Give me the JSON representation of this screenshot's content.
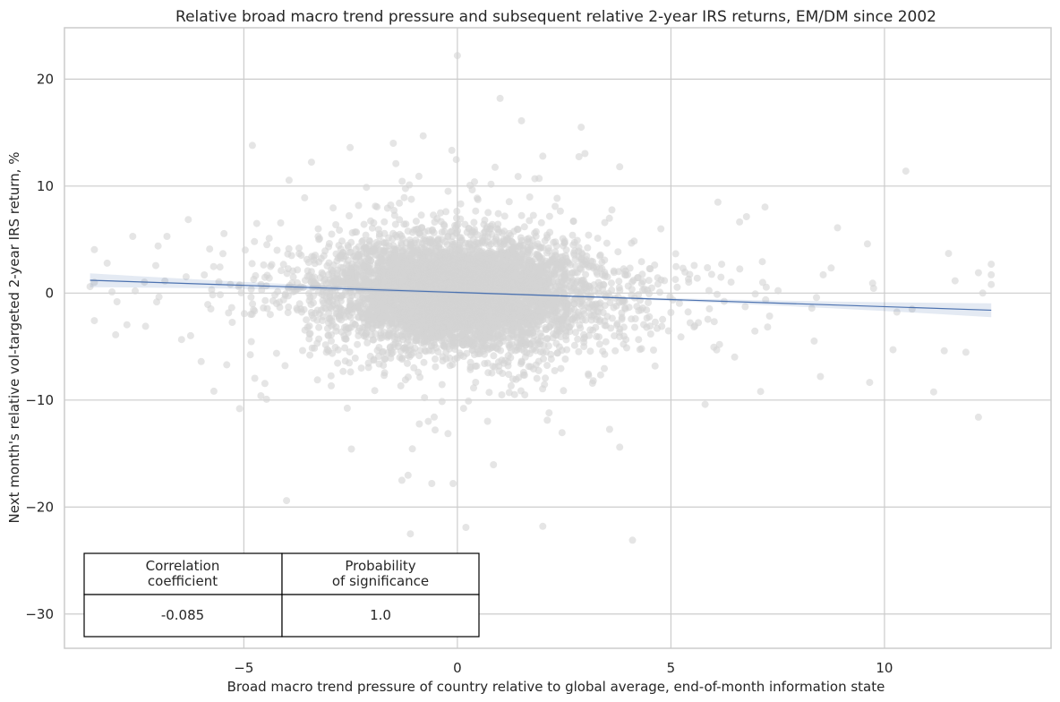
{
  "chart_data": {
    "type": "scatter",
    "title": "Relative broad macro trend pressure and subsequent relative 2-year IRS returns, EM/DM since 2002",
    "xlabel": "Broad macro trend pressure of country relative to global average, end-of-month information state",
    "ylabel": "Next month's relative vol-targeted 2-year IRS return, %",
    "xlim": [
      -9.2,
      13.9
    ],
    "ylim": [
      -33.2,
      24.8
    ],
    "x_ticks": [
      -5,
      0,
      5,
      10
    ],
    "x_tick_labels": [
      "−5",
      "0",
      "5",
      "10"
    ],
    "y_ticks": [
      -30,
      -20,
      -10,
      0,
      10,
      20
    ],
    "y_tick_labels": [
      "−30",
      "−20",
      "−10",
      "0",
      "10",
      "20"
    ],
    "grid": true,
    "point_count_approx": 6000,
    "outliers": [
      [
        0.0,
        22.2
      ],
      [
        1.0,
        18.2
      ],
      [
        1.5,
        16.1
      ],
      [
        2.9,
        15.5
      ],
      [
        -1.5,
        14.0
      ],
      [
        -4.8,
        13.8
      ],
      [
        -0.8,
        14.7
      ],
      [
        0.4,
        10.4
      ],
      [
        2.0,
        12.8
      ],
      [
        3.8,
        11.8
      ],
      [
        10.5,
        11.4
      ],
      [
        6.1,
        8.5
      ],
      [
        8.9,
        6.1
      ],
      [
        9.6,
        4.6
      ],
      [
        11.5,
        3.7
      ],
      [
        12.5,
        2.7
      ],
      [
        12.2,
        1.9
      ],
      [
        12.3,
        0.0
      ],
      [
        -7.6,
        5.3
      ],
      [
        -6.8,
        5.3
      ],
      [
        -8.6,
        0.6
      ],
      [
        -8.2,
        2.8
      ],
      [
        -8.0,
        -3.9
      ],
      [
        -7.3,
        -3.1
      ],
      [
        -5.1,
        -10.8
      ],
      [
        -4.0,
        -19.4
      ],
      [
        -1.3,
        -17.5
      ],
      [
        -1.1,
        -22.5
      ],
      [
        0.2,
        -21.9
      ],
      [
        2.0,
        -21.8
      ],
      [
        4.1,
        -23.1
      ],
      [
        3.8,
        -14.4
      ],
      [
        -0.6,
        -17.8
      ],
      [
        -0.1,
        -17.8
      ],
      [
        7.1,
        -9.2
      ],
      [
        8.5,
        -7.8
      ],
      [
        12.2,
        -11.6
      ],
      [
        11.4,
        -5.4
      ],
      [
        10.2,
        -5.3
      ],
      [
        5.8,
        -10.4
      ],
      [
        -4.6,
        -9.6
      ],
      [
        -6.0,
        -6.4
      ],
      [
        -5.4,
        -6.7
      ]
    ],
    "regression": {
      "x_range": [
        -8.6,
        12.5
      ],
      "y_at_start": 1.2,
      "y_at_end": -1.6,
      "ci_halfwidth_at_ends": 0.65
    },
    "annotations": {
      "table": {
        "headers": [
          "Correlation\ncoefficient",
          "Probability\nof significance"
        ],
        "header_lines": [
          [
            "Correlation",
            "coefficient"
          ],
          [
            "Probability",
            "of significance"
          ]
        ],
        "values": [
          "-0.085",
          "1.0"
        ]
      }
    }
  },
  "colors": {
    "points": "#d3d3d3",
    "regression": "#4c72b0",
    "grid": "#cccccc",
    "text": "#262626"
  }
}
